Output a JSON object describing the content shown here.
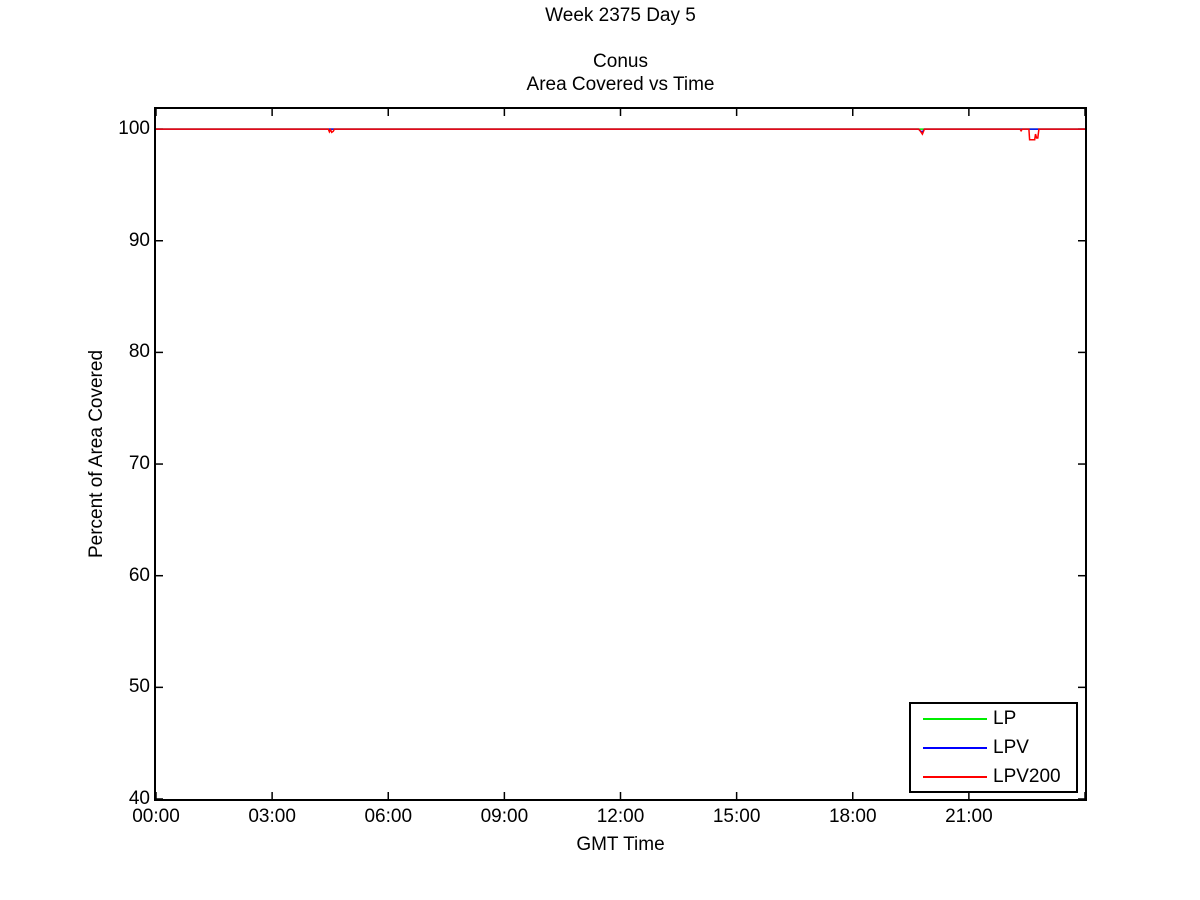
{
  "page": {
    "title": "Week 2375 Day 5",
    "subtitle_line1": "Conus",
    "subtitle_line2": "Area Covered vs Time"
  },
  "chart_data": {
    "type": "line",
    "title": "Week 2375 Day 5",
    "subtitle": "Conus Area Covered vs Time",
    "xlabel": "GMT Time",
    "ylabel": "Percent of Area Covered",
    "xlim_hours": [
      0,
      24
    ],
    "ylim": [
      40,
      101.8
    ],
    "grid": false,
    "legend_position": "bottom-right",
    "axis_color": "#000000",
    "x_ticks": [
      {
        "t": 0,
        "label": "00:00"
      },
      {
        "t": 3,
        "label": "03:00"
      },
      {
        "t": 6,
        "label": "06:00"
      },
      {
        "t": 9,
        "label": "09:00"
      },
      {
        "t": 12,
        "label": "12:00"
      },
      {
        "t": 15,
        "label": "15:00"
      },
      {
        "t": 18,
        "label": "18:00"
      },
      {
        "t": 21,
        "label": "21:00"
      },
      {
        "t": 24,
        "label": ""
      }
    ],
    "y_ticks": [
      {
        "v": 40,
        "label": "40"
      },
      {
        "v": 50,
        "label": "50"
      },
      {
        "v": 60,
        "label": "60"
      },
      {
        "v": 70,
        "label": "70"
      },
      {
        "v": 80,
        "label": "80"
      },
      {
        "v": 90,
        "label": "90"
      },
      {
        "v": 100,
        "label": "100"
      }
    ],
    "series": [
      {
        "name": "LP",
        "color": "#00ee00",
        "points": [
          [
            0,
            100
          ],
          [
            24,
            100
          ]
        ]
      },
      {
        "name": "LPV",
        "color": "#0000ff",
        "points": [
          [
            0,
            100
          ],
          [
            19.7,
            100
          ],
          [
            19.75,
            99.82
          ],
          [
            19.8,
            99.75
          ],
          [
            19.85,
            100
          ],
          [
            24,
            100
          ]
        ]
      },
      {
        "name": "LPV200",
        "color": "#ff0000",
        "points": [
          [
            0,
            100
          ],
          [
            4.45,
            100
          ],
          [
            4.48,
            99.75
          ],
          [
            4.51,
            99.95
          ],
          [
            4.54,
            99.7
          ],
          [
            4.58,
            99.8
          ],
          [
            4.61,
            100
          ],
          [
            19.7,
            100
          ],
          [
            19.75,
            99.8
          ],
          [
            19.8,
            99.55
          ],
          [
            19.85,
            100
          ],
          [
            22.32,
            100
          ],
          [
            22.35,
            99.85
          ],
          [
            22.38,
            100
          ],
          [
            22.55,
            100
          ],
          [
            22.57,
            99.05
          ],
          [
            22.7,
            99.05
          ],
          [
            22.72,
            99.55
          ],
          [
            22.75,
            99.2
          ],
          [
            22.78,
            99.2
          ],
          [
            22.81,
            100
          ],
          [
            24,
            100
          ]
        ]
      }
    ]
  }
}
